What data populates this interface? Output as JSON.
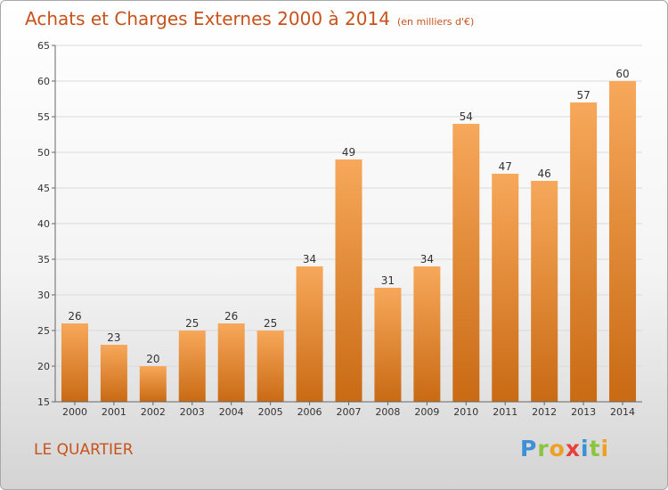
{
  "header": {
    "title": "Achats et Charges Externes 2000 à 2014",
    "unit": "(en milliers d'€)"
  },
  "footer": {
    "location": "LE QUARTIER",
    "brand": [
      "P",
      "r",
      "o",
      "x",
      "i",
      "t",
      "i"
    ]
  },
  "colors": {
    "bar_top": "#f7a85a",
    "bar_bottom": "#c96a14",
    "text_accent": "#c8521b",
    "brand": [
      "#3d8fd6",
      "#8bc53f",
      "#f0a020",
      "#e8413c",
      "#3d8fd6",
      "#8bc53f",
      "#f0a020"
    ]
  },
  "chart_data": {
    "type": "bar",
    "categories": [
      "2000",
      "2001",
      "2002",
      "2003",
      "2004",
      "2005",
      "2006",
      "2007",
      "2008",
      "2009",
      "2010",
      "2011",
      "2012",
      "2013",
      "2014"
    ],
    "values": [
      26,
      23,
      20,
      25,
      26,
      25,
      34,
      49,
      31,
      34,
      54,
      47,
      46,
      57,
      60
    ],
    "ylim": [
      15,
      65
    ],
    "yticks": [
      15,
      20,
      25,
      30,
      35,
      40,
      45,
      50,
      55,
      60,
      65
    ],
    "grid": true
  }
}
